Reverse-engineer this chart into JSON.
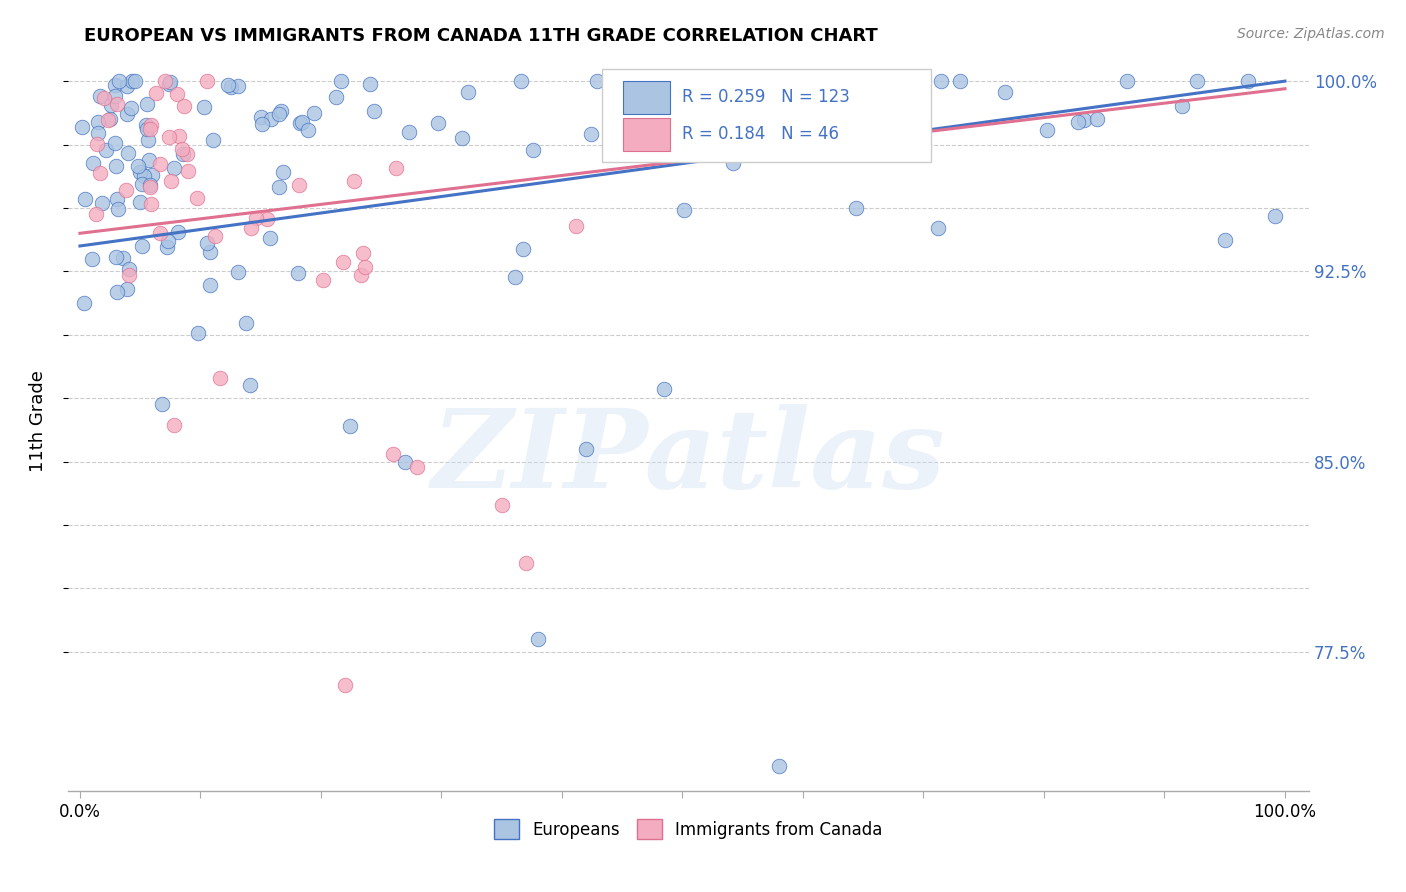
{
  "title": "EUROPEAN VS IMMIGRANTS FROM CANADA 11TH GRADE CORRELATION CHART",
  "source": "Source: ZipAtlas.com",
  "ylabel": "11th Grade",
  "watermark": "ZIPatlas",
  "r_blue": 0.259,
  "n_blue": 123,
  "r_pink": 0.184,
  "n_pink": 46,
  "legend_blue": "Europeans",
  "legend_pink": "Immigrants from Canada",
  "color_blue": "#aac4e2",
  "color_pink": "#f4adc0",
  "line_blue": "#4472c4",
  "line_pink": "#e07090",
  "ytick_vals": [
    0.775,
    0.8,
    0.825,
    0.85,
    0.875,
    0.9,
    0.925,
    0.95,
    0.975,
    1.0
  ],
  "ytick_labels": [
    "77.5%",
    "",
    "",
    "85.0%",
    "",
    "",
    "92.5%",
    "",
    "",
    "100.0%"
  ],
  "xtick_vals": [
    0.0,
    0.1,
    0.2,
    0.3,
    0.4,
    0.5,
    0.6,
    0.7,
    0.8,
    0.9,
    1.0
  ],
  "xtick_labels": [
    "0.0%",
    "",
    "",
    "",
    "",
    "",
    "",
    "",
    "",
    "",
    "100.0%"
  ],
  "xlim": [
    -0.01,
    1.02
  ],
  "ylim": [
    0.72,
    1.012
  ],
  "title_fontsize": 13,
  "tick_fontsize": 12
}
